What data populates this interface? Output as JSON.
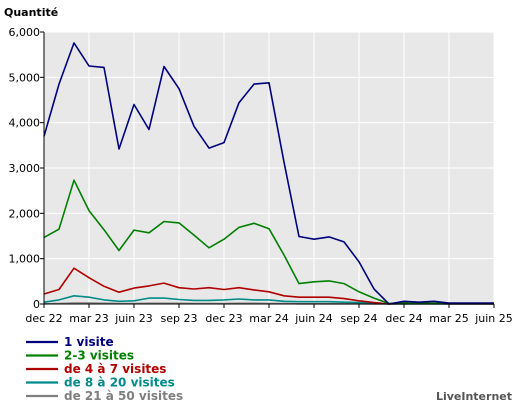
{
  "chart_data": {
    "type": "line",
    "ylabel": "Quantité",
    "ylim": [
      0,
      6000
    ],
    "y_ticks": [
      0,
      1000,
      2000,
      3000,
      4000,
      5000,
      6000
    ],
    "y_tick_labels": [
      "0",
      "1,000",
      "2,000",
      "3,000",
      "4,000",
      "5,000",
      "6,000"
    ],
    "x_tick_labels": [
      "dec 22",
      "mar 23",
      "juin 23",
      "sep 23",
      "dec 23",
      "mar 24",
      "juin 24",
      "sep 24",
      "dec 24",
      "mar 25",
      "juin 25"
    ],
    "x_ticks_at": [
      0,
      3,
      6,
      9,
      12,
      15,
      18,
      21,
      24,
      27,
      30
    ],
    "grid": true,
    "legend_position": "bottom-left",
    "credit": "LiveInternet",
    "series": [
      {
        "name": "1 visite",
        "color": "#00007f",
        "values": [
          3700,
          4850,
          5760,
          5250,
          5220,
          3420,
          4400,
          3850,
          5240,
          4750,
          3920,
          3440,
          3560,
          4440,
          4850,
          4880,
          3130,
          1490,
          1430,
          1480,
          1370,
          930,
          330,
          0,
          60,
          40,
          60,
          20,
          20,
          20,
          20
        ]
      },
      {
        "name": "2-3 visites",
        "color": "#008000",
        "values": [
          1470,
          1650,
          2730,
          2060,
          1640,
          1180,
          1630,
          1570,
          1820,
          1790,
          1520,
          1240,
          1430,
          1690,
          1780,
          1660,
          1080,
          450,
          490,
          510,
          450,
          270,
          130,
          10,
          30,
          20,
          20,
          10,
          10,
          10,
          10
        ]
      },
      {
        "name": "de 4 à 7 visites",
        "color": "#b00000",
        "values": [
          220,
          320,
          790,
          580,
          390,
          260,
          350,
          400,
          460,
          360,
          330,
          360,
          320,
          360,
          310,
          270,
          180,
          150,
          150,
          150,
          120,
          70,
          30,
          0,
          10,
          10,
          10,
          5,
          5,
          5,
          5
        ]
      },
      {
        "name": "de 8 à 20 visites",
        "color": "#008b8b",
        "values": [
          40,
          90,
          180,
          150,
          90,
          60,
          70,
          130,
          130,
          100,
          80,
          80,
          90,
          110,
          90,
          90,
          60,
          50,
          50,
          50,
          40,
          30,
          15,
          0,
          5,
          5,
          5,
          3,
          3,
          3,
          3
        ]
      },
      {
        "name": "de 21 à 50 visites",
        "color": "#7f7f7f",
        "values": [
          5,
          10,
          20,
          20,
          15,
          10,
          10,
          15,
          15,
          15,
          10,
          10,
          10,
          15,
          15,
          10,
          10,
          5,
          5,
          5,
          5,
          5,
          3,
          0,
          1,
          1,
          1,
          1,
          1,
          1,
          1
        ]
      }
    ]
  }
}
